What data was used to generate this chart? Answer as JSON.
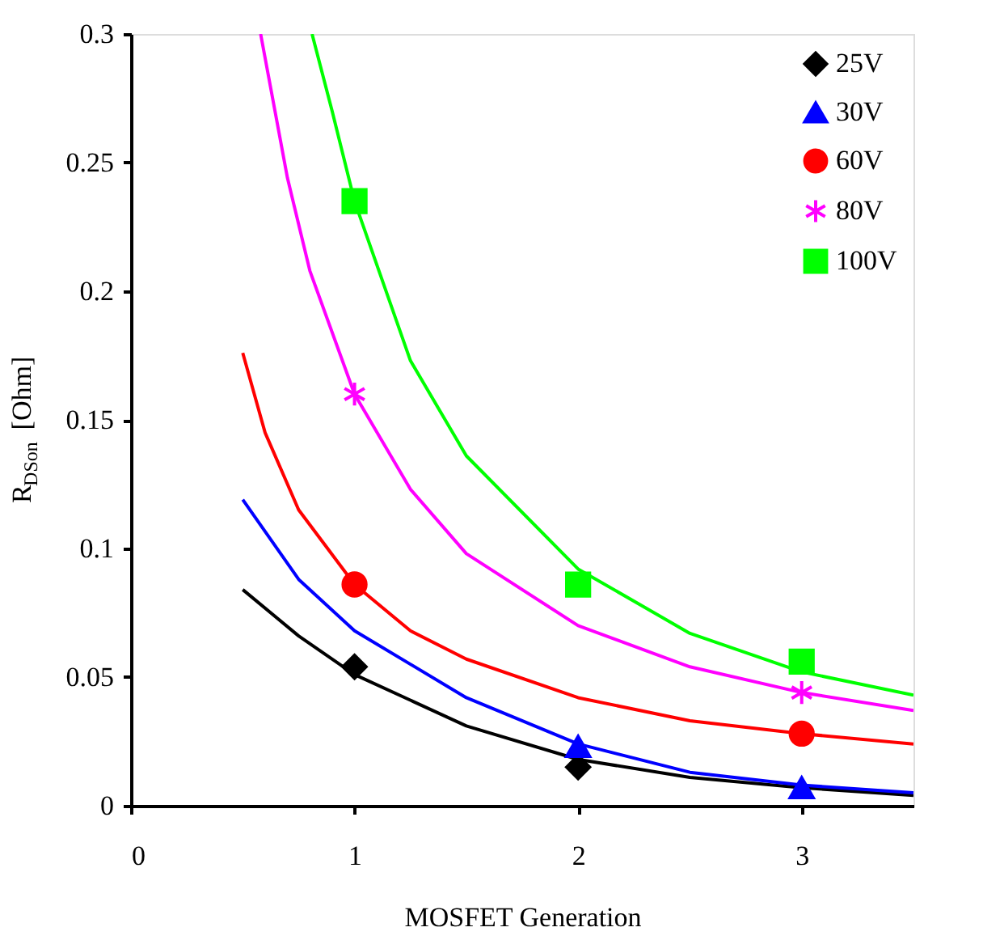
{
  "chart_data": {
    "type": "scatter",
    "xlabel": "MOSFET Generation",
    "ylabel": "R$_{DSon}$ [Ohm]",
    "xlim": [
      0,
      3.5
    ],
    "xticks": [
      0,
      1,
      2,
      3
    ],
    "ylim": [
      0,
      0.3
    ],
    "yticks": [
      0,
      0.05,
      0.1,
      0.15,
      0.2,
      0.25,
      0.3
    ],
    "grid": false,
    "legend": "top right",
    "series": [
      {
        "name": "25V",
        "color": "#000000",
        "marker": "diamond",
        "x": [
          1,
          2
        ],
        "values": [
          0.054,
          0.015
        ]
      },
      {
        "name": "30V",
        "color": "#0000ff",
        "marker": "triangle",
        "x": [
          2,
          3
        ],
        "values": [
          0.023,
          0.007
        ]
      },
      {
        "name": "60V",
        "color": "#ff0000",
        "marker": "circle",
        "x": [
          1,
          2,
          3
        ],
        "values": [
          0.086,
          null,
          0.028
        ]
      },
      {
        "name": "80V",
        "color": "#ff00ff",
        "marker": "cross",
        "x": [
          1,
          2,
          3
        ],
        "values": [
          0.16,
          null,
          0.044
        ]
      },
      {
        "name": "100V",
        "color": "#00ff00",
        "marker": "square",
        "x": [
          1,
          2,
          3
        ],
        "values": [
          0.235,
          0.086,
          0.056
        ]
      },
      {
        "type": "line",
        "color": "#000000",
        "marker": "none",
        "x": [
          0.5,
          0.75,
          1,
          1.5,
          2,
          2.5,
          3,
          3.5
        ],
        "values": [
          0.084,
          0.066,
          0.051,
          0.031,
          0.018,
          0.011,
          0.007,
          0.004
        ]
      },
      {
        "type": "line",
        "color": "#0000ff",
        "marker": "none",
        "x": [
          0.5,
          0.75,
          1,
          1.5,
          2,
          2.5,
          3,
          3.5
        ],
        "values": [
          0.119,
          0.088,
          0.068,
          0.042,
          0.024,
          0.013,
          0.008,
          0.005
        ]
      },
      {
        "type": "line",
        "color": "#ff0000",
        "marker": "none",
        "x": [
          0.5,
          0.6,
          0.75,
          1,
          1.25,
          1.5,
          2,
          2.5,
          3,
          3.5
        ],
        "values": [
          0.176,
          0.145,
          0.115,
          0.086,
          0.068,
          0.057,
          0.042,
          0.033,
          0.028,
          0.024
        ]
      },
      {
        "type": "line",
        "color": "#ff00ff",
        "marker": "none",
        "x": [
          0.58,
          0.7,
          0.8,
          1,
          1.25,
          1.5,
          2,
          2.5,
          3,
          3.5
        ],
        "values": [
          0.3,
          0.244,
          0.208,
          0.16,
          0.123,
          0.098,
          0.07,
          0.054,
          0.044,
          0.037
        ]
      },
      {
        "type": "line",
        "color": "#00ff00",
        "marker": "none",
        "x": [
          0.81,
          0.9,
          1,
          1.25,
          1.5,
          2,
          2.5,
          3,
          3.5
        ],
        "values": [
          0.3,
          0.27,
          0.235,
          0.173,
          0.136,
          0.092,
          0.067,
          0.052,
          0.043
        ]
      }
    ]
  }
}
